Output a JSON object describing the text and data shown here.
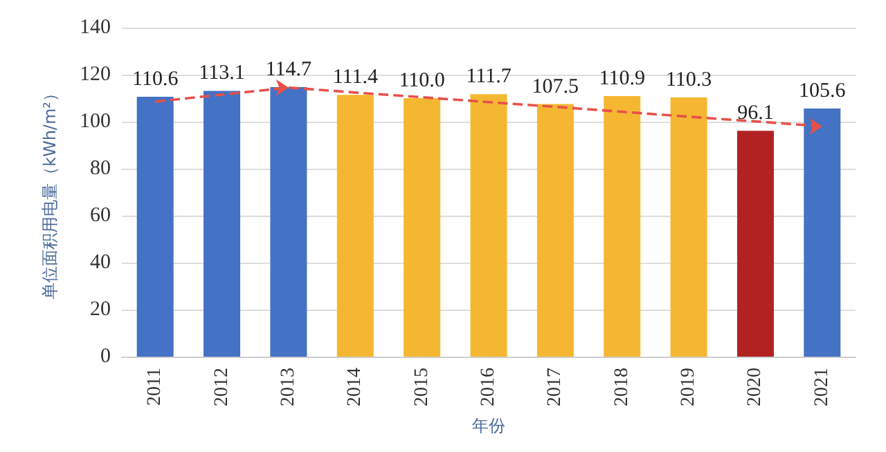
{
  "chart_data": {
    "type": "bar",
    "xlabel": "年份",
    "ylabel": "单位面积用电量（kWh/m²）",
    "categories": [
      "2011",
      "2012",
      "2013",
      "2014",
      "2015",
      "2016",
      "2017",
      "2018",
      "2019",
      "2020",
      "2021"
    ],
    "values": [
      110.6,
      113.1,
      114.7,
      111.4,
      110.0,
      111.7,
      107.5,
      110.9,
      110.3,
      96.1,
      105.6
    ],
    "colors": [
      "#4472c4",
      "#4472c4",
      "#4472c4",
      "#f5b731",
      "#f5b731",
      "#f5b731",
      "#f5b731",
      "#f5b731",
      "#f5b731",
      "#b22222",
      "#4472c4"
    ],
    "value_labels": [
      "110.6",
      "113.1",
      "114.7",
      "111.4",
      "110.0",
      "111.7",
      "107.5",
      "110.9",
      "110.3",
      "96.1",
      "105.6"
    ],
    "ylim": [
      0,
      140
    ],
    "yticks": [
      0,
      20,
      40,
      60,
      80,
      100,
      120,
      140
    ],
    "grid": "y",
    "series": [
      {
        "type": "line",
        "values": [
          108.5,
          111.5,
          114.5,
          112.4,
          110.4,
          108.3,
          106.3,
          104.2,
          102.1,
          100.1,
          98
        ],
        "color": "#e8504a",
        "line_style": "dashed"
      }
    ]
  }
}
